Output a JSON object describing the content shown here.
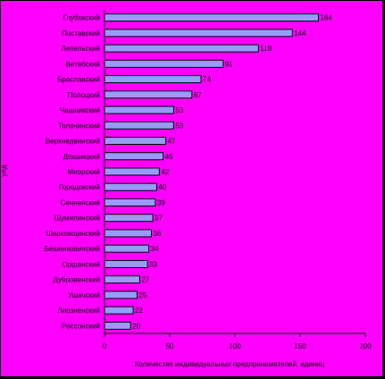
{
  "chart_data": {
    "type": "bar",
    "orientation": "horizontal",
    "title": "",
    "xlabel": "Количество индивидуальных предпринимателей, единиц",
    "ylabel": "улд",
    "xlim": [
      0,
      200
    ],
    "xticks": [
      "0",
      "50",
      "100",
      "150",
      "200"
    ],
    "grid": false,
    "legend": "none",
    "bar_color": "#9999ff",
    "background_color": "#ff00ff",
    "categories": [
      "Глубокский",
      "Поставский",
      "Лепельский",
      "Витебский",
      "Браславский",
      "Полоцкий",
      "Чашникский",
      "Толочинский",
      "Верхнедвинский",
      "Докшицкий",
      "Миорский",
      "Городокский",
      "Сенненский",
      "Шумилинский",
      "Шарковщинский",
      "Бешенковичский",
      "Оршанский",
      "Дубровенский",
      "Ушачский",
      "Лиозненский",
      "Россонский"
    ],
    "values": [
      164,
      144,
      118,
      91,
      74,
      67,
      53,
      53,
      47,
      45,
      42,
      40,
      39,
      37,
      36,
      34,
      33,
      27,
      25,
      22,
      20
    ]
  }
}
